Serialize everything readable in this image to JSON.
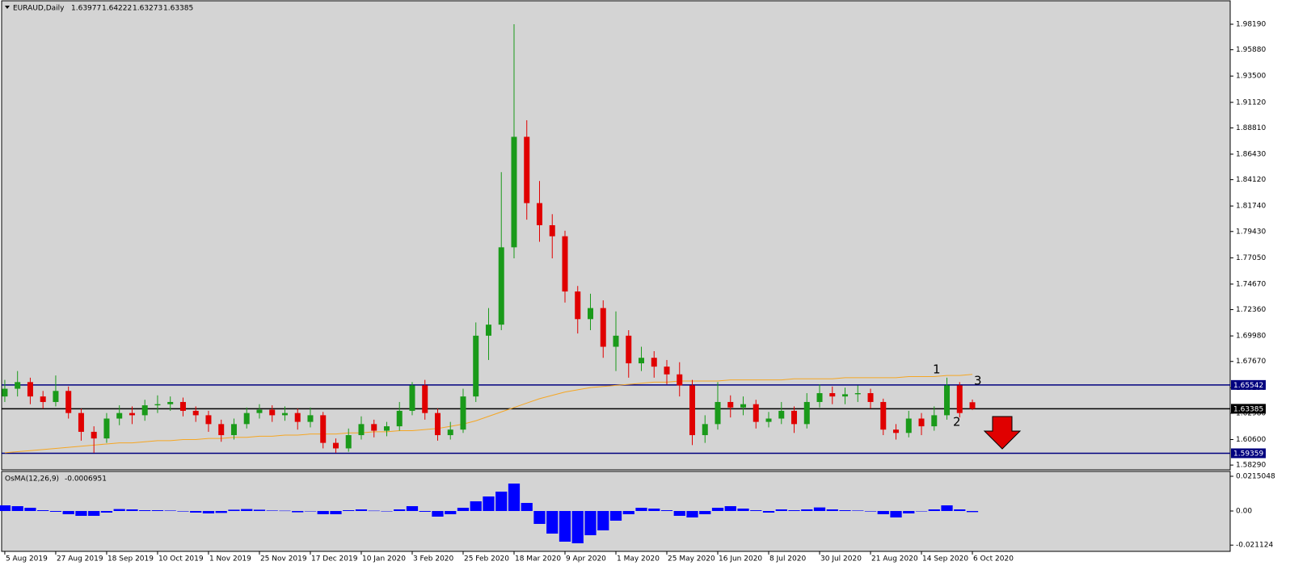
{
  "chart_data": {
    "type": "candlestick",
    "symbol": "EURAUD,Daily",
    "header_ohlc": [
      1.63977,
      1.64222,
      1.63273,
      1.63385
    ],
    "indicator": {
      "name": "OsMA(12,26,9)",
      "value": -0.0006951
    },
    "up_color": "#1a9a1a",
    "down_color": "#e00000",
    "ma_color": "#f5a623",
    "osc_color": "#0000ff",
    "background": "#d4d4d4",
    "xlim": [
      -1,
      385
    ],
    "ylim": [
      1.5786,
      2.0031
    ],
    "y2lim": [
      -0.025,
      0.0245
    ],
    "xticks": [
      {
        "value": 0,
        "label": "5 Aug 2019"
      },
      {
        "value": 16,
        "label": "27 Aug 2019"
      },
      {
        "value": 32,
        "label": "18 Sep 2019"
      },
      {
        "value": 48,
        "label": "10 Oct 2019"
      },
      {
        "value": 64,
        "label": "1 Nov 2019"
      },
      {
        "value": 80,
        "label": "25 Nov 2019"
      },
      {
        "value": 96,
        "label": "17 Dec 2019"
      },
      {
        "value": 112,
        "label": "10 Jan 2020"
      },
      {
        "value": 128,
        "label": "3 Feb 2020"
      },
      {
        "value": 144,
        "label": "25 Feb 2020"
      },
      {
        "value": 160,
        "label": "18 Mar 2020"
      },
      {
        "value": 176,
        "label": "9 Apr 2020"
      },
      {
        "value": 192,
        "label": "1 May 2020"
      },
      {
        "value": 208,
        "label": "25 May 2020"
      },
      {
        "value": 224,
        "label": "16 Jun 2020"
      },
      {
        "value": 240,
        "label": "8 Jul 2020"
      },
      {
        "value": 256,
        "label": "30 Jul 2020"
      },
      {
        "value": 272,
        "label": "21 Aug 2020"
      },
      {
        "value": 288,
        "label": "14 Sep 2020"
      },
      {
        "value": 304,
        "label": "6 Oct 2020"
      }
    ],
    "yticks": [
      {
        "value": 1.9819,
        "label": "1.98190"
      },
      {
        "value": 1.9588,
        "label": "1.95880"
      },
      {
        "value": 1.935,
        "label": "1.93500"
      },
      {
        "value": 1.9112,
        "label": "1.91120"
      },
      {
        "value": 1.8881,
        "label": "1.88810"
      },
      {
        "value": 1.8643,
        "label": "1.86430"
      },
      {
        "value": 1.8412,
        "label": "1.84120"
      },
      {
        "value": 1.8174,
        "label": "1.81740"
      },
      {
        "value": 1.7943,
        "label": "1.79430"
      },
      {
        "value": 1.7705,
        "label": "1.77050"
      },
      {
        "value": 1.7467,
        "label": "1.74670"
      },
      {
        "value": 1.7236,
        "label": "1.72360"
      },
      {
        "value": 1.6998,
        "label": "1.69980"
      },
      {
        "value": 1.6767,
        "label": "1.67670"
      },
      {
        "value": 1.6529,
        "label": "1.65290"
      },
      {
        "value": 1.6298,
        "label": "1.62980"
      },
      {
        "value": 1.606,
        "label": "1.60600"
      },
      {
        "value": 1.5829,
        "label": "1.58290"
      }
    ],
    "y2ticks": [
      0.0215048,
      {
        "value": 0,
        "label": "0.00"
      },
      -0.021124
    ],
    "levels": [
      {
        "value": 1.65542,
        "color": "#00007f"
      },
      {
        "value": 1.63385,
        "color": "#000000"
      },
      {
        "value": 1.59359,
        "color": "#00007f"
      }
    ],
    "annotations": [
      "1",
      "2",
      "3"
    ],
    "candles": {
      "x": [
        0,
        4,
        8,
        12,
        16,
        20,
        24,
        28,
        32,
        36,
        40,
        44,
        48,
        52,
        56,
        60,
        64,
        68,
        72,
        76,
        80,
        84,
        88,
        92,
        96,
        100,
        104,
        108,
        112,
        116,
        120,
        124,
        128,
        132,
        136,
        140,
        144,
        148,
        152,
        156,
        160,
        164,
        168,
        172,
        176,
        180,
        184,
        188,
        192,
        196,
        200,
        204,
        208,
        212,
        216,
        220,
        224,
        228,
        232,
        236,
        240,
        244,
        248,
        252,
        256,
        260,
        264,
        268,
        272,
        276,
        280,
        284,
        288,
        292,
        296,
        300,
        304
      ],
      "open": [
        1.645,
        1.652,
        1.658,
        1.645,
        1.64,
        1.65,
        1.63,
        1.613,
        1.607,
        1.625,
        1.63,
        1.628,
        1.637,
        1.638,
        1.64,
        1.632,
        1.628,
        1.62,
        1.61,
        1.62,
        1.63,
        1.633,
        1.628,
        1.63,
        1.622,
        1.628,
        1.603,
        1.598,
        1.61,
        1.62,
        1.614,
        1.618,
        1.632,
        1.655,
        1.63,
        1.61,
        1.615,
        1.645,
        1.7,
        1.71,
        1.78,
        1.88,
        1.82,
        1.8,
        1.79,
        1.74,
        1.715,
        1.725,
        1.69,
        1.7,
        1.675,
        1.68,
        1.672,
        1.665,
        1.655,
        1.61,
        1.62,
        1.64,
        1.635,
        1.638,
        1.622,
        1.625,
        1.632,
        1.62,
        1.64,
        1.648,
        1.645,
        1.647,
        1.648,
        1.64,
        1.615,
        1.612,
        1.625,
        1.618,
        1.628,
        1.655,
        1.63977
      ],
      "high": [
        1.66,
        1.668,
        1.662,
        1.65,
        1.664,
        1.654,
        1.634,
        1.618,
        1.63,
        1.637,
        1.636,
        1.642,
        1.646,
        1.645,
        1.644,
        1.636,
        1.632,
        1.624,
        1.625,
        1.635,
        1.638,
        1.637,
        1.636,
        1.634,
        1.635,
        1.631,
        1.607,
        1.616,
        1.627,
        1.624,
        1.622,
        1.64,
        1.658,
        1.66,
        1.634,
        1.622,
        1.652,
        1.712,
        1.725,
        1.848,
        1.9819,
        1.895,
        1.84,
        1.81,
        1.795,
        1.745,
        1.738,
        1.732,
        1.722,
        1.705,
        1.69,
        1.686,
        1.678,
        1.676,
        1.66,
        1.628,
        1.658,
        1.646,
        1.645,
        1.642,
        1.631,
        1.64,
        1.636,
        1.648,
        1.656,
        1.654,
        1.653,
        1.655,
        1.652,
        1.643,
        1.62,
        1.632,
        1.63,
        1.636,
        1.662,
        1.658,
        1.64222
      ],
      "low": [
        1.64,
        1.645,
        1.638,
        1.634,
        1.636,
        1.625,
        1.605,
        1.594,
        1.603,
        1.619,
        1.62,
        1.623,
        1.63,
        1.632,
        1.627,
        1.622,
        1.613,
        1.604,
        1.606,
        1.616,
        1.625,
        1.622,
        1.623,
        1.615,
        1.617,
        1.598,
        1.594,
        1.595,
        1.606,
        1.608,
        1.609,
        1.614,
        1.628,
        1.624,
        1.605,
        1.606,
        1.612,
        1.64,
        1.678,
        1.705,
        1.77,
        1.805,
        1.785,
        1.77,
        1.73,
        1.702,
        1.705,
        1.68,
        1.668,
        1.662,
        1.668,
        1.662,
        1.656,
        1.645,
        1.601,
        1.603,
        1.615,
        1.626,
        1.628,
        1.616,
        1.617,
        1.62,
        1.612,
        1.616,
        1.635,
        1.638,
        1.638,
        1.64,
        1.634,
        1.61,
        1.606,
        1.608,
        1.61,
        1.614,
        1.624,
        1.626,
        1.63273
      ],
      "close": [
        1.652,
        1.658,
        1.645,
        1.64,
        1.65,
        1.63,
        1.613,
        1.607,
        1.625,
        1.63,
        1.628,
        1.637,
        1.638,
        1.64,
        1.632,
        1.628,
        1.62,
        1.61,
        1.62,
        1.63,
        1.633,
        1.628,
        1.63,
        1.622,
        1.628,
        1.603,
        1.598,
        1.61,
        1.62,
        1.614,
        1.618,
        1.632,
        1.655,
        1.63,
        1.61,
        1.615,
        1.645,
        1.7,
        1.71,
        1.78,
        1.88,
        1.82,
        1.8,
        1.79,
        1.74,
        1.715,
        1.725,
        1.69,
        1.7,
        1.675,
        1.68,
        1.672,
        1.665,
        1.655,
        1.61,
        1.62,
        1.64,
        1.635,
        1.638,
        1.622,
        1.625,
        1.632,
        1.62,
        1.64,
        1.648,
        1.645,
        1.647,
        1.648,
        1.64,
        1.615,
        1.612,
        1.625,
        1.618,
        1.628,
        1.655,
        1.63,
        1.63385
      ]
    },
    "ma": [
      1.594,
      1.595,
      1.596,
      1.597,
      1.598,
      1.599,
      1.6,
      1.601,
      1.602,
      1.603,
      1.603,
      1.604,
      1.605,
      1.605,
      1.606,
      1.606,
      1.607,
      1.607,
      1.608,
      1.608,
      1.609,
      1.609,
      1.61,
      1.61,
      1.611,
      1.611,
      1.611,
      1.612,
      1.612,
      1.613,
      1.613,
      1.614,
      1.614,
      1.615,
      1.616,
      1.618,
      1.62,
      1.623,
      1.627,
      1.631,
      1.635,
      1.639,
      1.643,
      1.646,
      1.649,
      1.651,
      1.653,
      1.654,
      1.655,
      1.656,
      1.657,
      1.658,
      1.658,
      1.659,
      1.659,
      1.659,
      1.659,
      1.66,
      1.66,
      1.66,
      1.66,
      1.66,
      1.661,
      1.661,
      1.661,
      1.661,
      1.662,
      1.662,
      1.662,
      1.662,
      1.662,
      1.663,
      1.663,
      1.663,
      1.664,
      1.664,
      1.665
    ],
    "osc": [
      0.0035,
      0.003,
      0.002,
      0.0005,
      -0.0005,
      -0.002,
      -0.003,
      -0.003,
      -0.001,
      0.0012,
      0.001,
      0.0005,
      0.0005,
      0.0003,
      -0.0003,
      -0.001,
      -0.0015,
      -0.0012,
      0.0008,
      0.0012,
      0.0008,
      0.0003,
      0.0002,
      -0.0008,
      -0.0002,
      -0.002,
      -0.002,
      0.0005,
      0.001,
      0.0002,
      -0.0002,
      0.001,
      0.003,
      -0.0005,
      -0.0035,
      -0.002,
      0.002,
      0.006,
      0.009,
      0.012,
      0.017,
      0.005,
      -0.008,
      -0.014,
      -0.019,
      -0.02,
      -0.015,
      -0.012,
      -0.006,
      -0.002,
      0.002,
      0.0015,
      0.0005,
      -0.003,
      -0.004,
      -0.002,
      0.002,
      0.003,
      0.0015,
      0.0005,
      -0.001,
      0.001,
      0.0005,
      0.001,
      0.0022,
      0.001,
      0.0005,
      0.0003,
      -0.0003,
      -0.002,
      -0.004,
      -0.0015,
      -0.0002,
      0.001,
      0.0035,
      0.001,
      -0.0006951
    ]
  }
}
